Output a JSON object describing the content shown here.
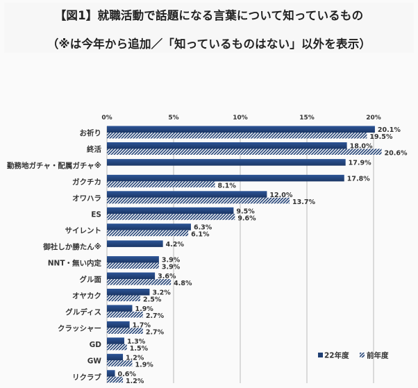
{
  "header": {
    "title": "【図1】就職活動で話題になる言葉について知っているもの",
    "subtitle": "（※は今年から追加／「知っているものはない」以外を表示）"
  },
  "colors": {
    "current": "#1f3f73",
    "previous_stripe": "#1f3f73",
    "previous_bg": "#ffffff",
    "grid": "#bfbfbf"
  },
  "chart_data": {
    "type": "bar",
    "orientation": "horizontal",
    "title": "【図1】就職活動で話題になる言葉について知っているもの",
    "subtitle": "（※は今年から追加／「知っているものはない」以外を表示）",
    "xlabel": "",
    "ylabel": "",
    "xlim": [
      0,
      20
    ],
    "x_ticks": [
      "0%",
      "5%",
      "10%",
      "15%",
      "20%"
    ],
    "x_tick_values": [
      0,
      5,
      10,
      15,
      20
    ],
    "grid": true,
    "legend_position": "bottom-right",
    "categories": [
      "お祈り",
      "終活",
      "勤務地ガチャ・配属ガチャ※",
      "ガクチカ",
      "オワハラ",
      "ES",
      "サイレント",
      "御社しか勝たん※",
      "NNT・無い内定",
      "グル面",
      "オヤカク",
      "グルディス",
      "クラッシャー",
      "GD",
      "GW",
      "リクラブ"
    ],
    "series": [
      {
        "name": "22年度",
        "pattern": "solid",
        "values": [
          20.1,
          18.0,
          17.9,
          17.8,
          12.0,
          9.5,
          6.3,
          4.2,
          3.9,
          3.6,
          3.2,
          1.9,
          1.7,
          1.3,
          1.2,
          0.6
        ],
        "labels": [
          "20.1%",
          "18.0%",
          "17.9%",
          "17.8%",
          "12.0%",
          "9.5%",
          "6.3%",
          "4.2%",
          "3.9%",
          "3.6%",
          "3.2%",
          "1.9%",
          "1.7%",
          "1.3%",
          "1.2%",
          "0.6%"
        ]
      },
      {
        "name": "前年度",
        "pattern": "hatched",
        "values": [
          19.5,
          20.6,
          null,
          8.1,
          13.7,
          9.6,
          6.1,
          null,
          3.9,
          4.8,
          2.5,
          2.7,
          2.7,
          1.5,
          1.9,
          1.2
        ],
        "labels": [
          "19.5%",
          "20.6%",
          "",
          "8.1%",
          "13.7%",
          "9.6%",
          "6.1%",
          "",
          "3.9%",
          "4.8%",
          "2.5%",
          "2.7%",
          "2.7%",
          "1.5%",
          "1.9%",
          "1.2%"
        ]
      }
    ]
  }
}
